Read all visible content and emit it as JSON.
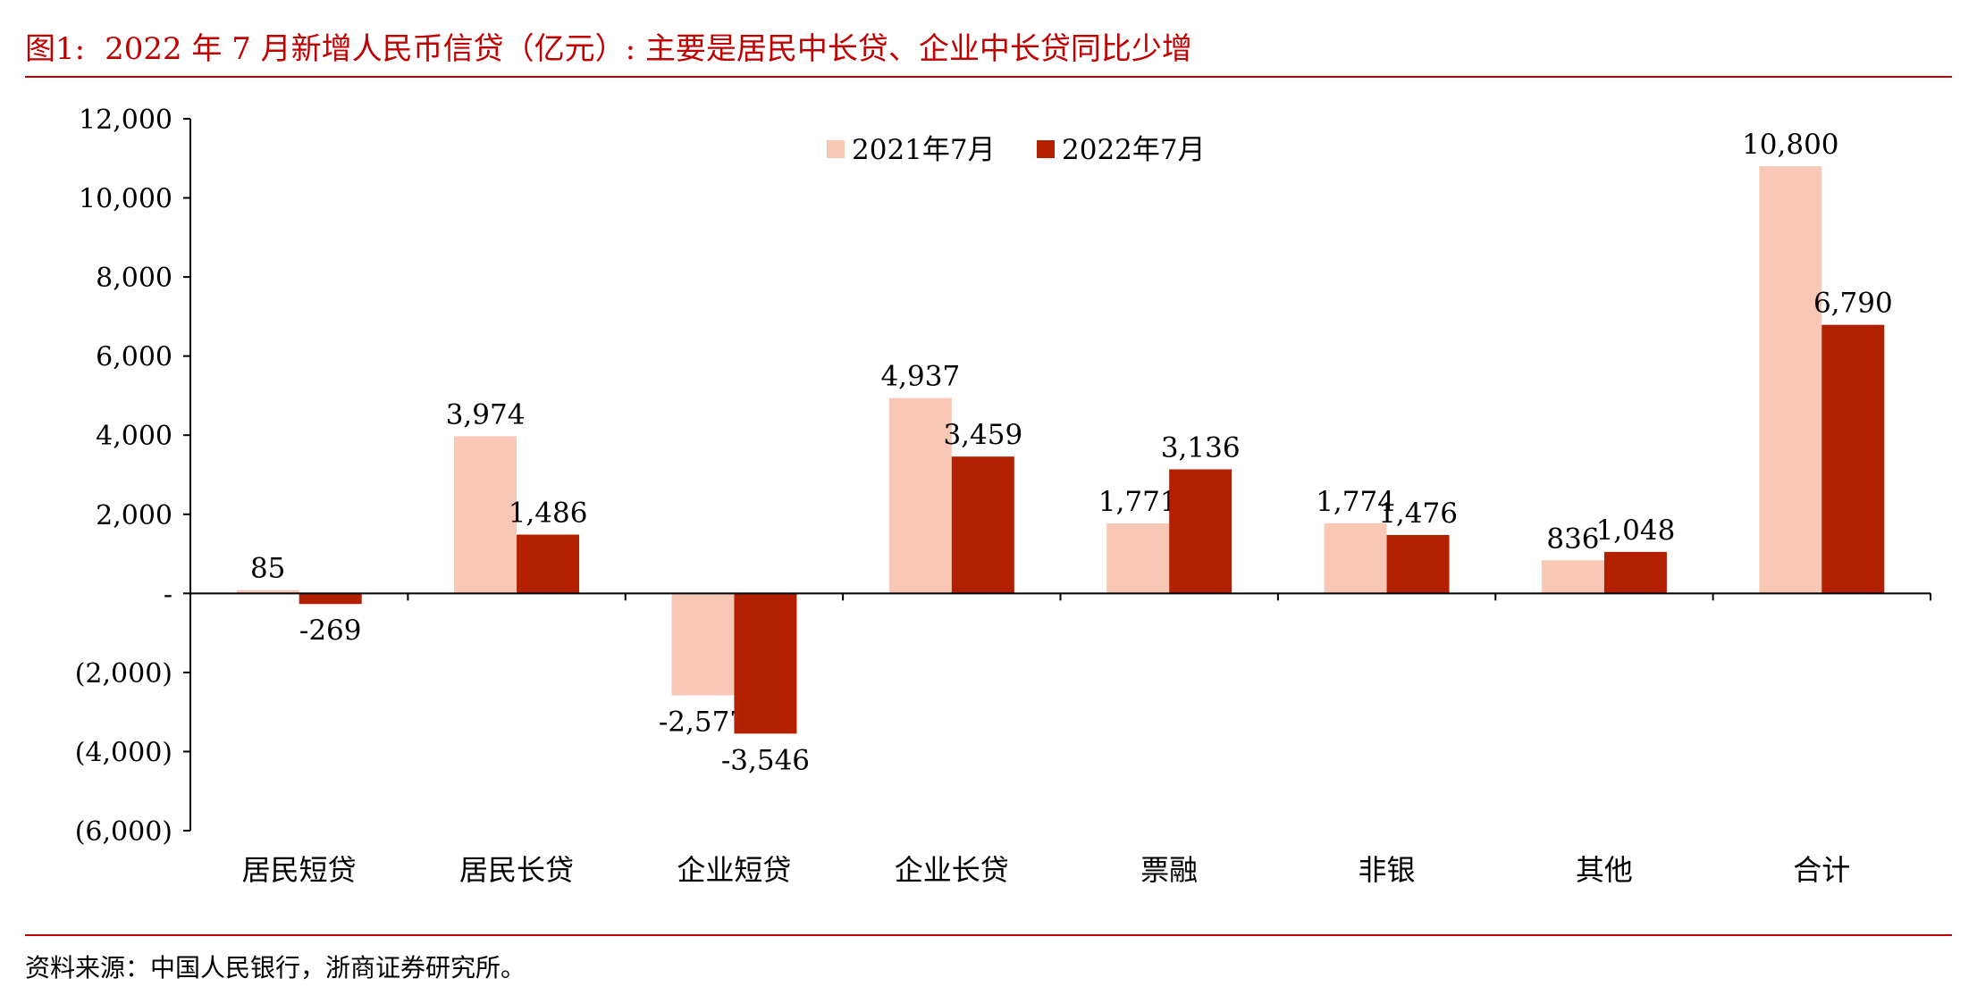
{
  "figure": {
    "title_number": "图1:",
    "title_text": "2022 年 7 月新增人民币信贷（亿元）: 主要是居民中长贷、企业中长贷同比少增",
    "source": "资料来源：中国人民银行，浙商证券研究所。",
    "accent_color": "#c00000"
  },
  "chart_data": {
    "type": "bar",
    "categories": [
      "居民短贷",
      "居民长贷",
      "企业短贷",
      "企业长贷",
      "票融",
      "非银",
      "其他",
      "合计"
    ],
    "series": [
      {
        "name": "2021年7月",
        "values": [
          85,
          3974,
          -2577,
          4937,
          1771,
          1774,
          836,
          10800
        ],
        "color": "#f8c7b6",
        "labels": [
          "85",
          "3,974",
          "-2,577",
          "4,937",
          "1,771",
          "1,774",
          "836",
          "10,800"
        ]
      },
      {
        "name": "2022年7月",
        "values": [
          -269,
          1486,
          -3546,
          3459,
          3136,
          1476,
          1048,
          6790
        ],
        "color": "#b22000",
        "labels": [
          "-269",
          "1,486",
          "-3,546",
          "3,459",
          "3,136",
          "1,476",
          "1,048",
          "6,790"
        ]
      }
    ],
    "ylim": [
      -6000,
      12000
    ],
    "yticks": [
      12000,
      10000,
      8000,
      6000,
      4000,
      2000,
      0,
      -2000,
      -4000,
      -6000
    ],
    "ytick_labels": [
      "12,000",
      "10,000",
      "8,000",
      "6,000",
      "4,000",
      "2,000",
      "-",
      "(2,000)",
      "(4,000)",
      "(6,000)"
    ],
    "grid": false,
    "legend_position": "top-center",
    "xlabel": "",
    "ylabel": ""
  }
}
